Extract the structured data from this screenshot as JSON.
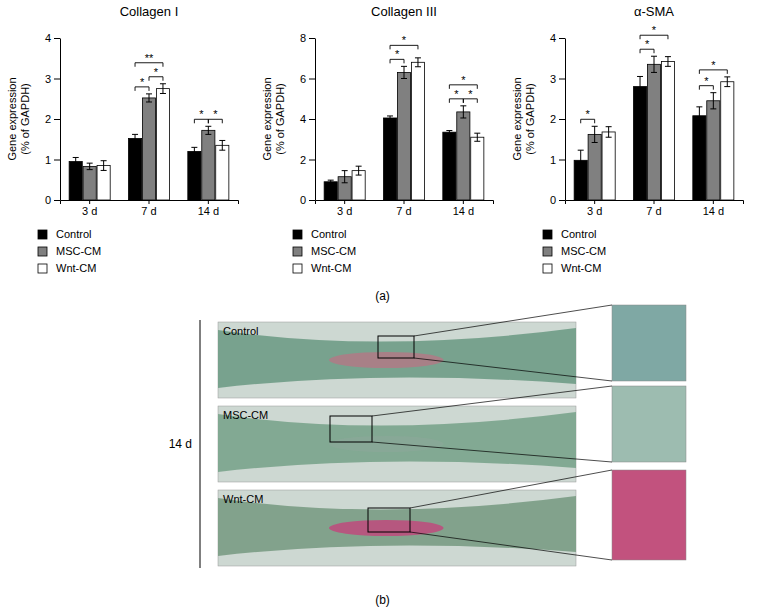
{
  "chart_data": [
    {
      "type": "bar",
      "title": "Collagen I",
      "y_label": [
        "Gene expression",
        "(% of GAPDH)"
      ],
      "categories": [
        "3 d",
        "7 d",
        "14 d"
      ],
      "series": [
        {
          "name": "Control",
          "color": "#000000",
          "values": [
            0.95,
            1.52,
            1.2
          ],
          "errors": [
            0.1,
            0.1,
            0.1
          ]
        },
        {
          "name": "MSC-CM",
          "color": "#808080",
          "values": [
            0.83,
            2.52,
            1.72
          ],
          "errors": [
            0.08,
            0.1,
            0.1
          ]
        },
        {
          "name": "Wnt-CM",
          "color": "#ffffff",
          "values": [
            0.85,
            2.75,
            1.35
          ],
          "errors": [
            0.12,
            0.12,
            0.12
          ]
        }
      ],
      "ylim": [
        0,
        4
      ],
      "yticks": [
        0,
        1,
        2,
        3,
        4
      ],
      "grid": false,
      "annotations": [
        {
          "category": "7 d",
          "pair": [
            "Control",
            "MSC-CM"
          ],
          "text": "*"
        },
        {
          "category": "7 d",
          "pair": [
            "MSC-CM",
            "Wnt-CM"
          ],
          "text": "*"
        },
        {
          "category": "7 d",
          "pair": [
            "Control",
            "Wnt-CM"
          ],
          "text": "**"
        },
        {
          "category": "14 d",
          "pair": [
            "Control",
            "MSC-CM"
          ],
          "text": "*"
        },
        {
          "category": "14 d",
          "pair": [
            "MSC-CM",
            "Wnt-CM"
          ],
          "text": "*"
        }
      ]
    },
    {
      "type": "bar",
      "title": "Collagen III",
      "y_label": [
        "Gene expression",
        "(% of GAPDH)"
      ],
      "categories": [
        "3 d",
        "7 d",
        "14 d"
      ],
      "series": [
        {
          "name": "Control",
          "color": "#000000",
          "values": [
            0.9,
            4.05,
            3.35
          ],
          "errors": [
            0.08,
            0.1,
            0.08
          ]
        },
        {
          "name": "MSC-CM",
          "color": "#808080",
          "values": [
            1.15,
            6.3,
            4.35
          ],
          "errors": [
            0.3,
            0.3,
            0.3
          ]
        },
        {
          "name": "Wnt-CM",
          "color": "#ffffff",
          "values": [
            1.45,
            6.8,
            3.1
          ],
          "errors": [
            0.22,
            0.22,
            0.2
          ]
        }
      ],
      "ylim": [
        0,
        8
      ],
      "yticks": [
        0,
        2,
        4,
        6,
        8
      ],
      "grid": false,
      "annotations": [
        {
          "category": "7 d",
          "pair": [
            "Control",
            "MSC-CM"
          ],
          "text": "*"
        },
        {
          "category": "7 d",
          "pair": [
            "Control",
            "Wnt-CM"
          ],
          "text": "*"
        },
        {
          "category": "14 d",
          "pair": [
            "Control",
            "MSC-CM"
          ],
          "text": "*"
        },
        {
          "category": "14 d",
          "pair": [
            "MSC-CM",
            "Wnt-CM"
          ],
          "text": "*"
        },
        {
          "category": "14 d",
          "pair": [
            "Control",
            "Wnt-CM"
          ],
          "text": "*"
        }
      ]
    },
    {
      "type": "bar",
      "title": "α-SMA",
      "y_label": [
        "Gene expression",
        "(% of GAPDH)"
      ],
      "categories": [
        "3 d",
        "7 d",
        "14 d"
      ],
      "series": [
        {
          "name": "Control",
          "color": "#000000",
          "values": [
            0.98,
            2.8,
            2.08
          ],
          "errors": [
            0.25,
            0.25,
            0.22
          ]
        },
        {
          "name": "MSC-CM",
          "color": "#808080",
          "values": [
            1.62,
            3.35,
            2.45
          ],
          "errors": [
            0.2,
            0.2,
            0.2
          ]
        },
        {
          "name": "Wnt-CM",
          "color": "#ffffff",
          "values": [
            1.68,
            3.42,
            2.92
          ],
          "errors": [
            0.13,
            0.12,
            0.12
          ]
        }
      ],
      "ylim": [
        0,
        4
      ],
      "yticks": [
        0,
        1,
        2,
        3,
        4
      ],
      "grid": false,
      "annotations": [
        {
          "category": "3 d",
          "pair": [
            "Control",
            "MSC-CM"
          ],
          "text": "*"
        },
        {
          "category": "7 d",
          "pair": [
            "Control",
            "MSC-CM"
          ],
          "text": "*"
        },
        {
          "category": "7 d",
          "pair": [
            "Control",
            "Wnt-CM"
          ],
          "text": "*"
        },
        {
          "category": "14 d",
          "pair": [
            "Control",
            "MSC-CM"
          ],
          "text": "*"
        },
        {
          "category": "14 d",
          "pair": [
            "Control",
            "Wnt-CM"
          ],
          "text": "*"
        }
      ]
    }
  ],
  "figure": {
    "panel_labels": [
      "(a)",
      "(b)"
    ],
    "histology": {
      "time_label": "14 d",
      "rows": [
        "Control",
        "MSC-CM",
        "Wnt-CM"
      ]
    }
  }
}
